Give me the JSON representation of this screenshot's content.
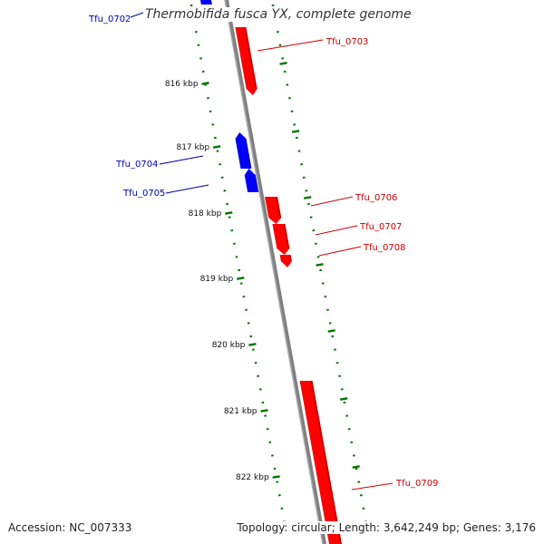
{
  "title": "Thermobifida fusca YX, complete genome",
  "footer": {
    "accession_label": "Accession:",
    "accession": "NC_007333",
    "topology_label": "Topology:",
    "topology": "circular",
    "length_label": "Length:",
    "length": "3,642,249 bp",
    "genes_label": "Genes:",
    "genes": "3,176"
  },
  "colors": {
    "forward_gene": "#ff0000",
    "reverse_gene": "#0000ff",
    "backbone": "#808080",
    "tick": "#007700",
    "forward_label": "#cc0000",
    "reverse_label": "#0000aa"
  },
  "ticks": [
    "816 kbp",
    "817 kbp",
    "818 kbp",
    "819 kbp",
    "820 kbp",
    "821 kbp",
    "822 kbp"
  ],
  "genes": [
    {
      "name": "Tfu_0702",
      "strand": "reverse"
    },
    {
      "name": "Tfu_0703",
      "strand": "forward"
    },
    {
      "name": "Tfu_0704",
      "strand": "reverse"
    },
    {
      "name": "Tfu_0705",
      "strand": "reverse"
    },
    {
      "name": "Tfu_0706",
      "strand": "forward"
    },
    {
      "name": "Tfu_0707",
      "strand": "forward"
    },
    {
      "name": "Tfu_0708",
      "strand": "forward"
    },
    {
      "name": "Tfu_0709",
      "strand": "forward"
    }
  ]
}
